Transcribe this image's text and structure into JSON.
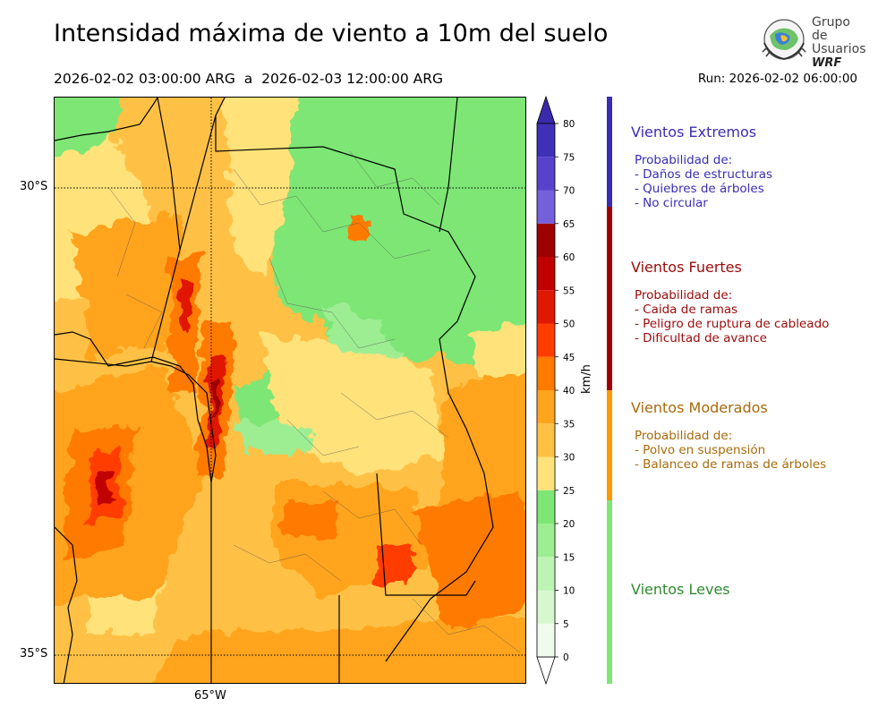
{
  "header": {
    "title": "Intensidad máxima de viento a 10m del suelo",
    "period": "2026-02-02 03:00:00 ARG  a  2026-02-03 12:00:00 ARG",
    "run": "Run: 2026-02-02 06:00:00"
  },
  "logo": {
    "line1": "Grupo de",
    "line2": "Usuarios",
    "line3": "WRF"
  },
  "map": {
    "lat_labels": [
      "30°S",
      "35°S"
    ],
    "lon_labels": [
      "65°W"
    ],
    "variable": "Intensidad máxima de viento a 10m (km/h)"
  },
  "colorbar": {
    "unit": "km/h",
    "ticks": [
      "0",
      "5",
      "10",
      "15",
      "20",
      "25",
      "30",
      "35",
      "40",
      "45",
      "50",
      "55",
      "60",
      "65",
      "70",
      "75",
      "80"
    ],
    "bins": [
      {
        "min": 0,
        "max": 5,
        "color": "#f0fbef"
      },
      {
        "min": 5,
        "max": 10,
        "color": "#d6f7cf"
      },
      {
        "min": 10,
        "max": 15,
        "color": "#bdf3b3"
      },
      {
        "min": 15,
        "max": 20,
        "color": "#9ded93"
      },
      {
        "min": 20,
        "max": 25,
        "color": "#7de674"
      },
      {
        "min": 25,
        "max": 30,
        "color": "#ffe27a"
      },
      {
        "min": 30,
        "max": 35,
        "color": "#ffc144"
      },
      {
        "min": 35,
        "max": 40,
        "color": "#ffa41f"
      },
      {
        "min": 40,
        "max": 45,
        "color": "#ff7a00"
      },
      {
        "min": 45,
        "max": 50,
        "color": "#ff3d00"
      },
      {
        "min": 50,
        "max": 55,
        "color": "#e01800"
      },
      {
        "min": 55,
        "max": 60,
        "color": "#c00000"
      },
      {
        "min": 60,
        "max": 65,
        "color": "#9d0000"
      },
      {
        "min": 65,
        "max": 70,
        "color": "#7560dc"
      },
      {
        "min": 70,
        "max": 75,
        "color": "#5842cc"
      },
      {
        "min": 75,
        "max": 80,
        "color": "#4030b8"
      }
    ],
    "extend_low_color": "#ffffff",
    "extend_high_color": "#3a2aaa"
  },
  "categories": [
    {
      "name": "Vientos Extremos",
      "color": "#3a2db5",
      "strip": "#3a2db5",
      "min": 65,
      "max": 80,
      "body": "Probabilidad de:\n- Daños de estructuras\n- Quiebres de árboles\n- No circular"
    },
    {
      "name": "Vientos Fuertes",
      "color": "#9c0a0a",
      "strip": "#a00000",
      "min": 40,
      "max": 65,
      "body": "Probabilidad de:\n- Caida de ramas\n- Peligro de ruptura de cableado\n- Dificultad de avance"
    },
    {
      "name": "Vientos Moderados",
      "color": "#a86a0a",
      "strip": "#ff9900",
      "min": 25,
      "max": 40,
      "body": "Probabilidad de:\n- Polvo en suspensión\n- Balanceo de ramas de árboles"
    },
    {
      "name": "Vientos Leves",
      "color": "#2e8a2e",
      "strip": "#7de674",
      "min": 0,
      "max": 25,
      "body": ""
    }
  ]
}
